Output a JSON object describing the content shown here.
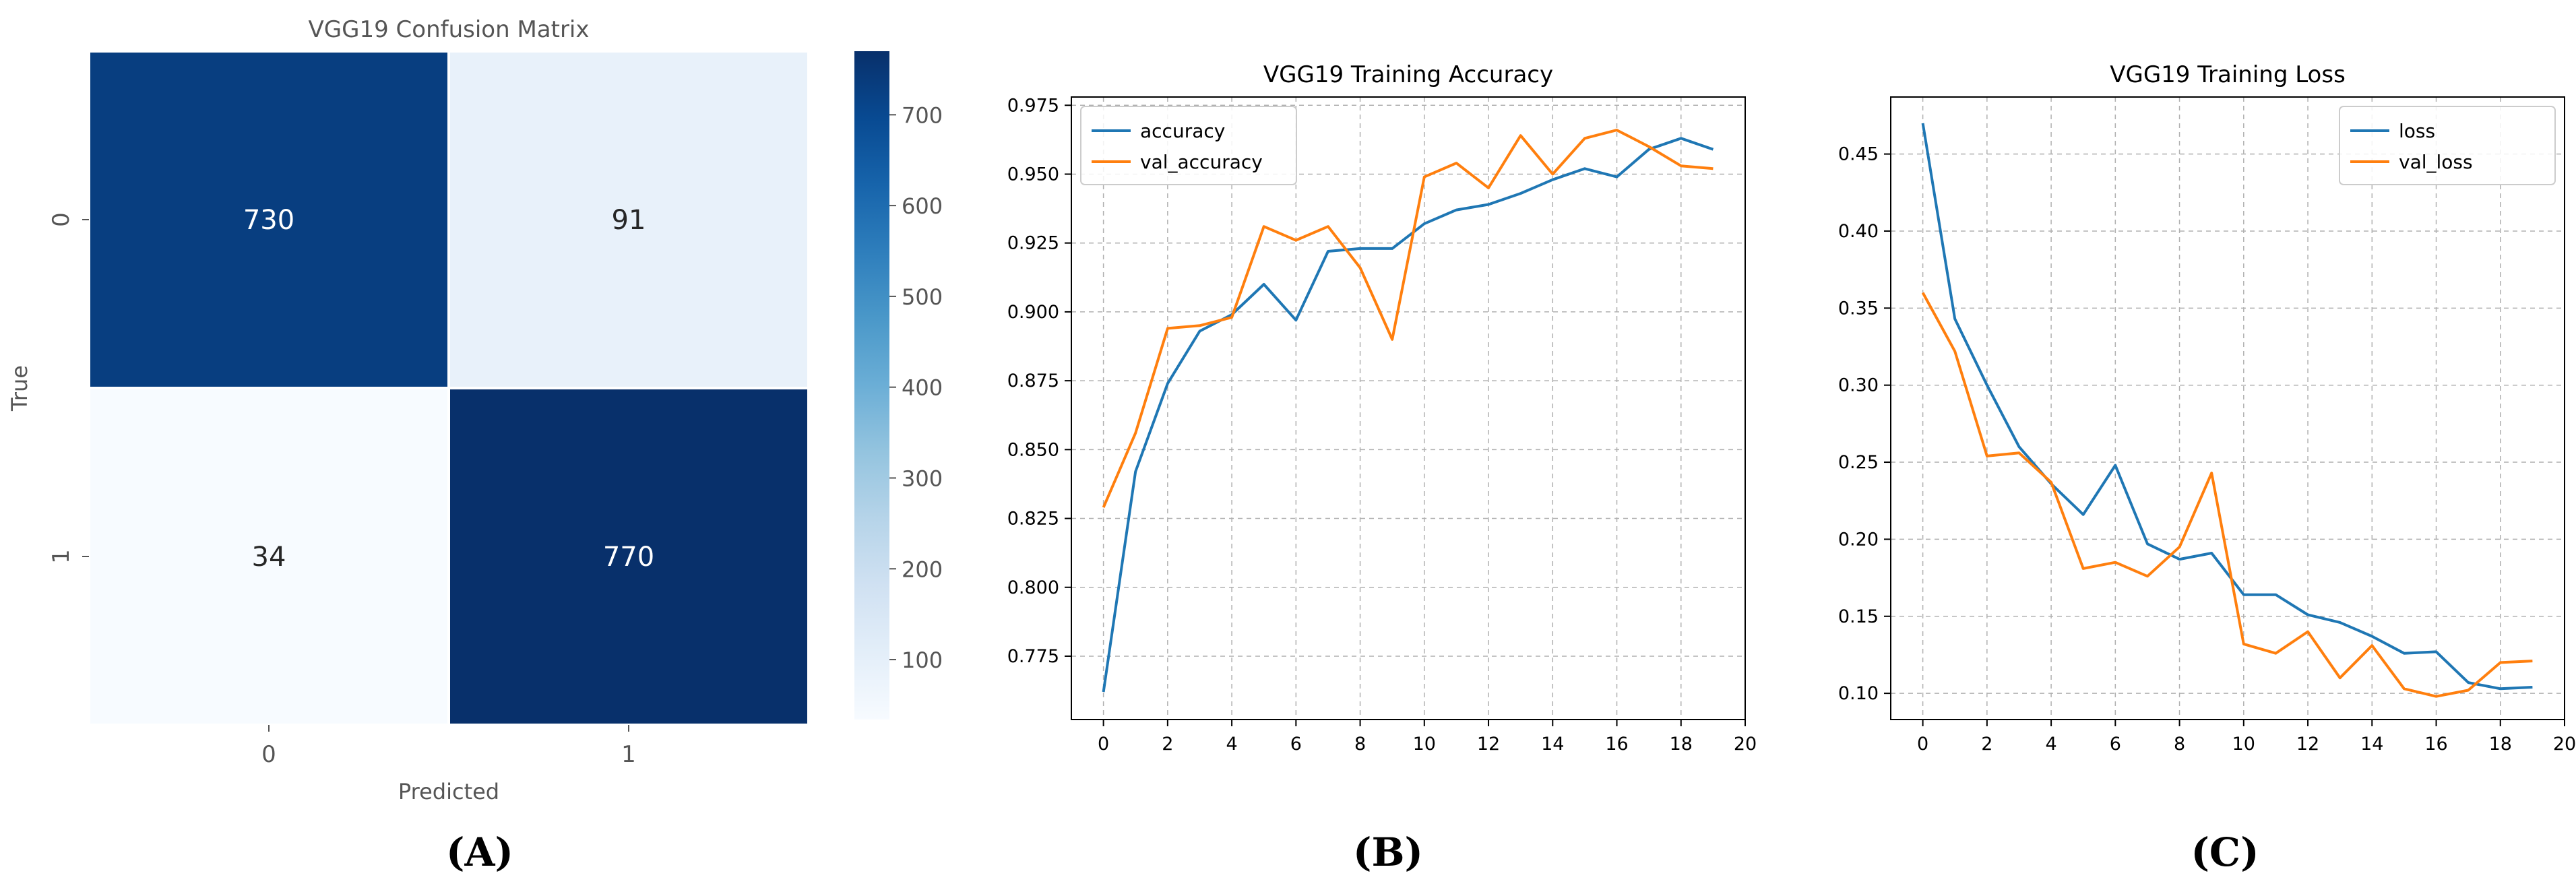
{
  "panel_labels": [
    "(A)",
    "(B)",
    "(C)"
  ],
  "chart_data": [
    {
      "type": "heatmap",
      "title": "VGG19 Confusion Matrix",
      "xlabel": "Predicted",
      "ylabel": "True",
      "x_categories": [
        "0",
        "1"
      ],
      "y_categories": [
        "0",
        "1"
      ],
      "values": [
        [
          730,
          91
        ],
        [
          34,
          770
        ]
      ],
      "colorbar": {
        "ticks": [
          100,
          200,
          300,
          400,
          500,
          600,
          700
        ],
        "range": [
          34,
          770
        ],
        "colormap": "Blues"
      },
      "colors": {
        "low": "#f7fbff",
        "high": "#08306b"
      }
    },
    {
      "type": "line",
      "title": "VGG19 Training Accuracy",
      "xlabel": "",
      "ylabel": "",
      "x": [
        0,
        1,
        2,
        3,
        4,
        5,
        6,
        7,
        8,
        9,
        10,
        11,
        12,
        13,
        14,
        15,
        16,
        17,
        18,
        19
      ],
      "series": [
        {
          "name": "accuracy",
          "color": "#1f77b4",
          "values": [
            0.762,
            0.842,
            0.874,
            0.893,
            0.899,
            0.91,
            0.897,
            0.922,
            0.923,
            0.923,
            0.932,
            0.937,
            0.939,
            0.943,
            0.948,
            0.952,
            0.949,
            0.959,
            0.963,
            0.959
          ]
        },
        {
          "name": "val_accuracy",
          "color": "#ff7f0e",
          "values": [
            0.829,
            0.856,
            0.894,
            0.895,
            0.898,
            0.931,
            0.926,
            0.931,
            0.916,
            0.89,
            0.949,
            0.954,
            0.945,
            0.964,
            0.95,
            0.963,
            0.966,
            0.96,
            0.953,
            0.952
          ]
        }
      ],
      "xticks": [
        0,
        2,
        4,
        6,
        8,
        10,
        12,
        14,
        16,
        18,
        20
      ],
      "yticks": [
        0.775,
        0.8,
        0.825,
        0.85,
        0.875,
        0.9,
        0.925,
        0.95,
        0.975
      ],
      "ytick_labels": [
        "0.775",
        "0.800",
        "0.825",
        "0.850",
        "0.875",
        "0.900",
        "0.925",
        "0.950",
        "0.975"
      ],
      "xlim": [
        -1.0,
        20.0
      ],
      "ylim": [
        0.752,
        0.978
      ],
      "grid": true,
      "legend": "top-left"
    },
    {
      "type": "line",
      "title": "VGG19 Training Loss",
      "xlabel": "",
      "ylabel": "",
      "x": [
        0,
        1,
        2,
        3,
        4,
        5,
        6,
        7,
        8,
        9,
        10,
        11,
        12,
        13,
        14,
        15,
        16,
        17,
        18,
        19
      ],
      "series": [
        {
          "name": "loss",
          "color": "#1f77b4",
          "values": [
            0.47,
            0.343,
            0.3,
            0.26,
            0.236,
            0.216,
            0.248,
            0.197,
            0.187,
            0.191,
            0.164,
            0.164,
            0.151,
            0.146,
            0.137,
            0.126,
            0.127,
            0.107,
            0.103,
            0.104
          ]
        },
        {
          "name": "val_loss",
          "color": "#ff7f0e",
          "values": [
            0.36,
            0.322,
            0.254,
            0.256,
            0.237,
            0.181,
            0.185,
            0.176,
            0.195,
            0.243,
            0.132,
            0.126,
            0.14,
            0.11,
            0.131,
            0.103,
            0.098,
            0.102,
            0.12,
            0.121
          ]
        }
      ],
      "xticks": [
        0,
        2,
        4,
        6,
        8,
        10,
        12,
        14,
        16,
        18,
        20
      ],
      "yticks": [
        0.1,
        0.15,
        0.2,
        0.25,
        0.3,
        0.35,
        0.4,
        0.45
      ],
      "ytick_labels": [
        "0.10",
        "0.15",
        "0.20",
        "0.25",
        "0.30",
        "0.35",
        "0.40",
        "0.45"
      ],
      "xlim": [
        -1.0,
        20.0
      ],
      "ylim": [
        0.083,
        0.487
      ],
      "grid": true,
      "legend": "top-right"
    }
  ]
}
